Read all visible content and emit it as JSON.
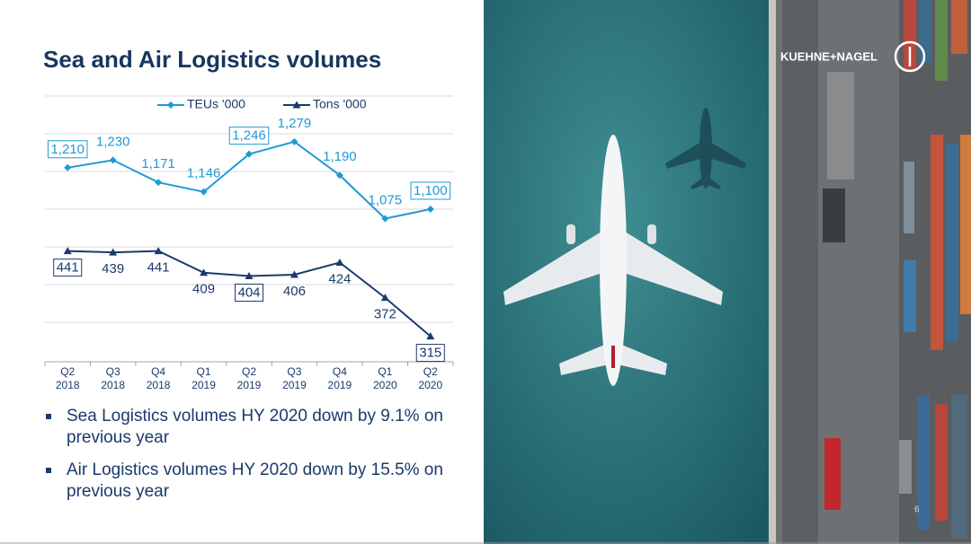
{
  "chart_data": {
    "type": "line",
    "title": "Sea and Air Logistics volumes",
    "categories": [
      "Q2 2018",
      "Q3 2018",
      "Q4 2018",
      "Q1 2019",
      "Q2 2019",
      "Q3 2019",
      "Q4 2019",
      "Q1 2020",
      "Q2 2020"
    ],
    "series": [
      {
        "name": "TEUs '000",
        "color": "#1f9ad6",
        "marker": "diamond",
        "label_position": "above",
        "values": [
          1210,
          1230,
          1171,
          1146,
          1246,
          1279,
          1190,
          1075,
          1100
        ],
        "value_labels": [
          "1,210",
          "1,230",
          "1,171",
          "1,146",
          "1,246",
          "1,279",
          "1,190",
          "1,075",
          "1,100"
        ],
        "boxed_labels": [
          0,
          4,
          8
        ]
      },
      {
        "name": "Tons '000",
        "color": "#1b3a6b",
        "marker": "triangle",
        "label_position": "below",
        "axis": "y2",
        "values": [
          441,
          439,
          441,
          409,
          404,
          406,
          424,
          372,
          315
        ],
        "boxed_labels": [
          0,
          4,
          8
        ]
      }
    ],
    "ylim": [
      700,
      1400
    ],
    "y2lim": [
      280,
      670
    ],
    "grid": true,
    "legend": "top"
  },
  "bullets": [
    "Sea Logistics volumes HY 2020 down by 9.1% on previous year",
    "Air Logistics volumes HY 2020 down by 15.5% on previous year"
  ],
  "logo": "KUEHNE+NAGEL",
  "page_number": "6"
}
